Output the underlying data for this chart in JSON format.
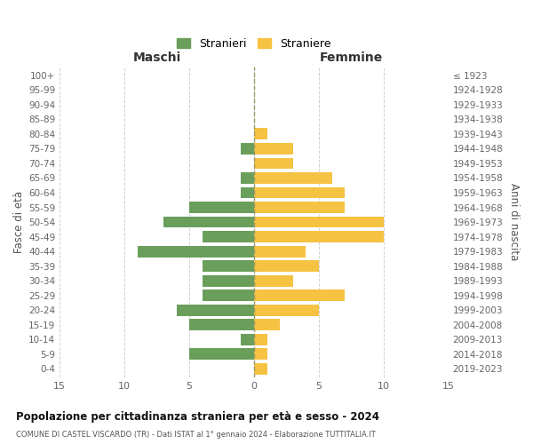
{
  "age_groups": [
    "0-4",
    "5-9",
    "10-14",
    "15-19",
    "20-24",
    "25-29",
    "30-34",
    "35-39",
    "40-44",
    "45-49",
    "50-54",
    "55-59",
    "60-64",
    "65-69",
    "70-74",
    "75-79",
    "80-84",
    "85-89",
    "90-94",
    "95-99",
    "100+"
  ],
  "birth_years": [
    "2019-2023",
    "2014-2018",
    "2009-2013",
    "2004-2008",
    "1999-2003",
    "1994-1998",
    "1989-1993",
    "1984-1988",
    "1979-1983",
    "1974-1978",
    "1969-1973",
    "1964-1968",
    "1959-1963",
    "1954-1958",
    "1949-1953",
    "1944-1948",
    "1939-1943",
    "1934-1938",
    "1929-1933",
    "1924-1928",
    "≤ 1923"
  ],
  "males": [
    0,
    5,
    1,
    5,
    6,
    4,
    4,
    4,
    9,
    4,
    7,
    5,
    1,
    1,
    0,
    1,
    0,
    0,
    0,
    0,
    0
  ],
  "females": [
    1,
    1,
    1,
    2,
    5,
    7,
    3,
    5,
    4,
    10,
    10,
    7,
    7,
    6,
    3,
    3,
    1,
    0,
    0,
    0,
    0
  ],
  "male_color": "#6a9e5b",
  "female_color": "#f5c242",
  "male_label": "Stranieri",
  "female_label": "Straniere",
  "title": "Popolazione per cittadinanza straniera per età e sesso - 2024",
  "subtitle": "COMUNE DI CASTEL VISCARDO (TR) - Dati ISTAT al 1° gennaio 2024 - Elaborazione TUTTITALIA.IT",
  "xlabel_left": "Maschi",
  "xlabel_right": "Femmine",
  "ylabel_left": "Fasce di età",
  "ylabel_right": "Anni di nascita",
  "xlim": 15,
  "background_color": "#ffffff",
  "grid_color": "#d0d0d0",
  "dashed_line_color": "#999966"
}
